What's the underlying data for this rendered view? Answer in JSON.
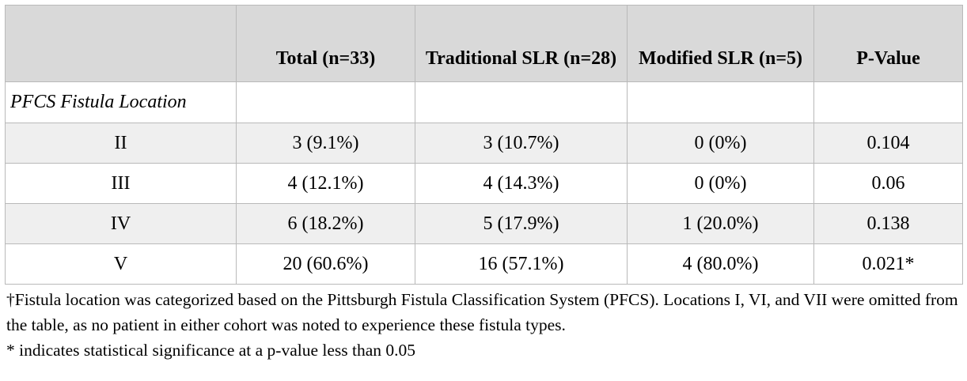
{
  "table": {
    "headers": [
      "",
      "Total (n=33)",
      "Traditional SLR (n=28)",
      "Modified SLR (n=5)",
      "P-Value"
    ],
    "section_label": "PFCS Fistula Location",
    "rows": [
      {
        "location": "II",
        "total": "3 (9.1%)",
        "traditional": "3 (10.7%)",
        "modified": "0 (0%)",
        "p_value": "0.104",
        "significant": false
      },
      {
        "location": "III",
        "total": "4 (12.1%)",
        "traditional": "4 (14.3%)",
        "modified": "0 (0%)",
        "p_value": "0.06",
        "significant": false
      },
      {
        "location": "IV",
        "total": "6 (18.2%)",
        "traditional": "5 (17.9%)",
        "modified": "1 (20.0%)",
        "p_value": "0.138",
        "significant": false
      },
      {
        "location": "V",
        "total": "20 (60.6%)",
        "traditional": "16 (57.1%)",
        "modified": "4 (80.0%)",
        "p_value": "0.021*",
        "significant": true
      }
    ]
  },
  "notes": {
    "footnote_1": "†Fistula location was categorized based on the Pittsburgh Fistula Classification System (PFCS). Locations I, VI, and VII were omitted from the table, as no patient in either cohort was noted to experience these fistula types.",
    "footnote_2": "* indicates statistical significance at a p-value less than 0.05"
  },
  "colors": {
    "header_bg": "#d9d9d9",
    "shaded_row_bg": "#efefef",
    "border": "#b9b9b9"
  }
}
